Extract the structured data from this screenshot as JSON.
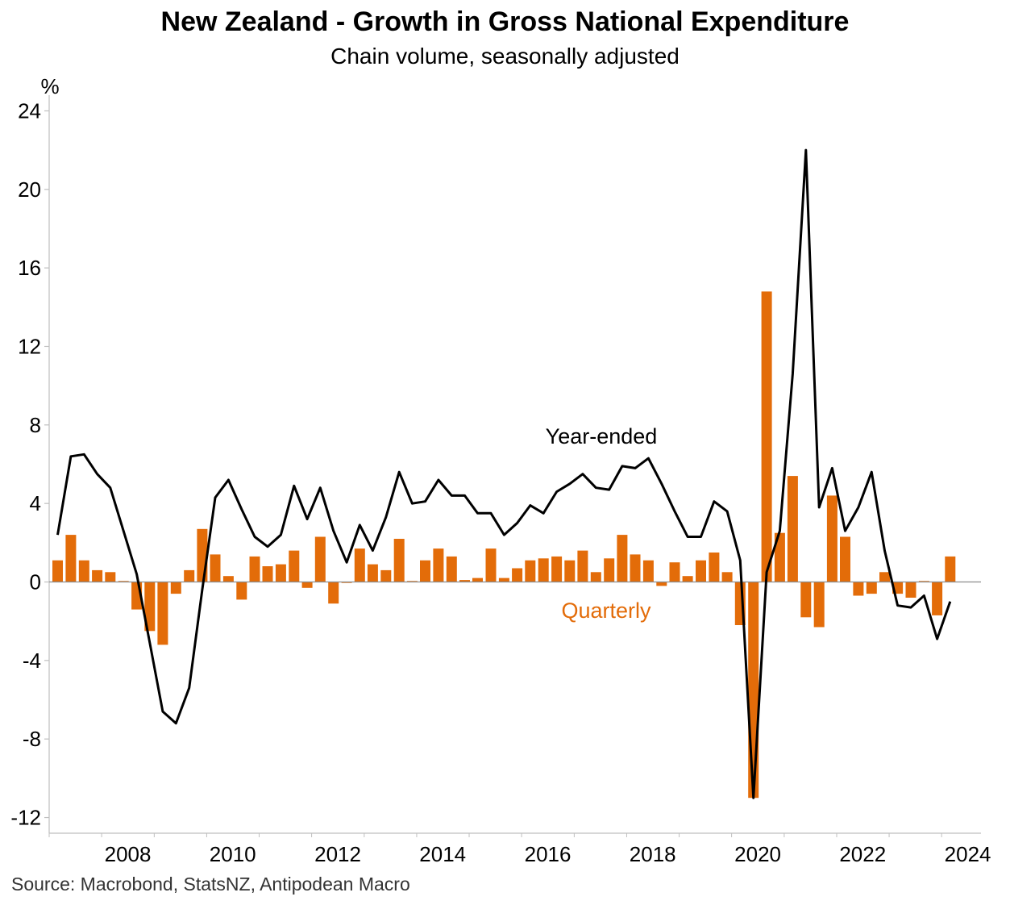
{
  "title": "New Zealand - Growth in Gross National Expenditure",
  "subtitle": "Chain volume, seasonally adjusted",
  "source": "Source: Macrobond, StatsNZ, Antipodean Macro",
  "colors": {
    "quarterly": "#E36C09",
    "year_ended": "#000000",
    "axis": "#BFBFBF"
  },
  "chart_data": {
    "type": "bar",
    "title": "New Zealand - Growth in Gross National Expenditure",
    "subtitle": "Chain volume, seasonally adjusted",
    "ylabel": "%",
    "ylim": [
      -12.8,
      24.8
    ],
    "yticks": [
      24,
      20,
      16,
      12,
      8,
      4,
      0,
      -4,
      -8,
      -12
    ],
    "xlim": [
      "2007-01-01",
      "2024-10-01"
    ],
    "xticks": [
      "2008",
      "2010",
      "2012",
      "2014",
      "2016",
      "2018",
      "2020",
      "2022",
      "2024"
    ],
    "x": [
      "2007-03",
      "2007-06",
      "2007-09",
      "2007-12",
      "2008-03",
      "2008-06",
      "2008-09",
      "2008-12",
      "2009-03",
      "2009-06",
      "2009-09",
      "2009-12",
      "2010-03",
      "2010-06",
      "2010-09",
      "2010-12",
      "2011-03",
      "2011-06",
      "2011-09",
      "2011-12",
      "2012-03",
      "2012-06",
      "2012-09",
      "2012-12",
      "2013-03",
      "2013-06",
      "2013-09",
      "2013-12",
      "2014-03",
      "2014-06",
      "2014-09",
      "2014-12",
      "2015-03",
      "2015-06",
      "2015-09",
      "2015-12",
      "2016-03",
      "2016-06",
      "2016-09",
      "2016-12",
      "2017-03",
      "2017-06",
      "2017-09",
      "2017-12",
      "2018-03",
      "2018-06",
      "2018-09",
      "2018-12",
      "2019-03",
      "2019-06",
      "2019-09",
      "2019-12",
      "2020-03",
      "2020-06",
      "2020-09",
      "2020-12",
      "2021-03",
      "2021-06",
      "2021-09",
      "2021-12",
      "2022-03",
      "2022-06",
      "2022-09",
      "2022-12",
      "2023-03",
      "2023-06",
      "2023-09",
      "2023-12",
      "2024-03"
    ],
    "series": [
      {
        "name": "Quarterly",
        "type": "bar",
        "color": "#E36C09",
        "values": [
          1.1,
          2.4,
          1.1,
          0.6,
          0.5,
          0.05,
          -1.4,
          -2.5,
          -3.2,
          -0.6,
          0.6,
          2.7,
          1.4,
          0.3,
          -0.9,
          1.3,
          0.8,
          0.9,
          1.6,
          -0.3,
          2.3,
          -1.1,
          -0.05,
          1.7,
          0.9,
          0.6,
          2.2,
          0.05,
          1.1,
          1.7,
          1.3,
          0.1,
          0.2,
          1.7,
          0.2,
          0.7,
          1.1,
          1.2,
          1.3,
          1.1,
          1.6,
          0.5,
          1.2,
          2.4,
          1.4,
          1.1,
          -0.2,
          1.0,
          0.3,
          1.1,
          1.5,
          0.5,
          -2.2,
          -11.0,
          14.8,
          2.5,
          5.4,
          -1.8,
          -2.3,
          4.4,
          2.3,
          -0.7,
          -0.6,
          0.5,
          -0.6,
          -0.8,
          0.05,
          -1.7,
          1.3
        ]
      },
      {
        "name": "Year-ended",
        "type": "line",
        "color": "#000000",
        "values": [
          2.4,
          6.4,
          6.5,
          5.5,
          4.8,
          2.6,
          0.4,
          -3.1,
          -6.6,
          -7.2,
          -5.4,
          -0.4,
          4.3,
          5.2,
          3.7,
          2.3,
          1.8,
          2.4,
          4.9,
          3.2,
          4.8,
          2.6,
          1.0,
          2.9,
          1.6,
          3.3,
          5.6,
          4.0,
          4.1,
          5.2,
          4.4,
          4.4,
          3.5,
          3.5,
          2.4,
          3.0,
          3.9,
          3.5,
          4.6,
          5.0,
          5.5,
          4.8,
          4.7,
          5.9,
          5.8,
          6.3,
          5.0,
          3.6,
          2.3,
          2.3,
          4.1,
          3.6,
          1.1,
          -11.0,
          0.5,
          2.6,
          10.6,
          22.0,
          3.8,
          5.8,
          2.6,
          3.8,
          5.6,
          1.6,
          -1.2,
          -1.3,
          -0.7,
          -2.9,
          -1.0
        ]
      }
    ],
    "annotations": [
      "Year-ended",
      "Quarterly"
    ],
    "legend": "none",
    "grid": false
  }
}
